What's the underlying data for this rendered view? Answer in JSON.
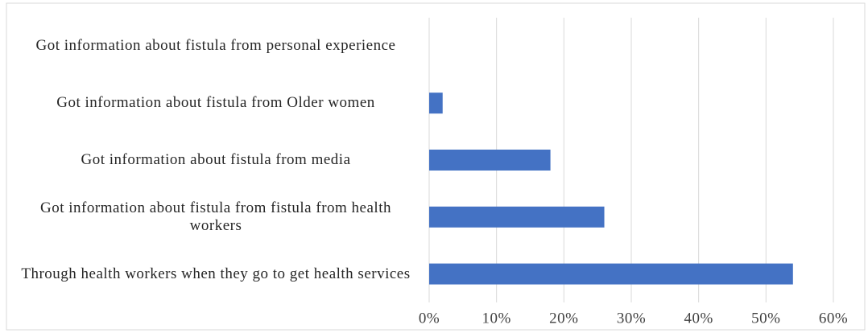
{
  "chart_data": {
    "type": "bar",
    "orientation": "horizontal",
    "categories": [
      "Got information about fistula from personal experience",
      "Got information about fistula from Older women",
      "Got information about fistula from media",
      "Got information about fistula from fistula from health workers",
      "Through health workers when they go to get health services"
    ],
    "values": [
      0,
      2,
      18,
      26,
      54
    ],
    "color": "#4472c4",
    "xlim": [
      0,
      60
    ],
    "xticks": [
      {
        "value": 0,
        "label": "0%"
      },
      {
        "value": 10,
        "label": "10%"
      },
      {
        "value": 20,
        "label": "20%"
      },
      {
        "value": 30,
        "label": "30%"
      },
      {
        "value": 40,
        "label": "40%"
      },
      {
        "value": 50,
        "label": "50%"
      },
      {
        "value": 60,
        "label": "60%"
      }
    ],
    "grid": true
  }
}
